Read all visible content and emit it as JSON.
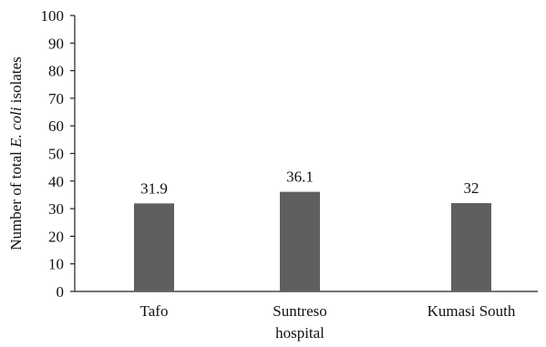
{
  "chart_data": {
    "type": "bar",
    "categories": [
      [
        "Tafo"
      ],
      [
        "Suntreso",
        "hospital"
      ],
      [
        "Kumasi South"
      ]
    ],
    "values": [
      31.9,
      36.1,
      32
    ],
    "data_labels": [
      "31.9",
      "36.1",
      "32"
    ],
    "title": "",
    "xlabel": "",
    "ylabel": {
      "prefix": "Number of total ",
      "italic": "E. coli",
      "suffix": " isolates"
    },
    "ylim": [
      0,
      100
    ],
    "yticks": [
      0,
      10,
      20,
      30,
      40,
      50,
      60,
      70,
      80,
      90,
      100
    ],
    "grid": false,
    "legend": "none",
    "colors": {
      "bar": "#5f5f5f",
      "axis": "#222222"
    }
  }
}
